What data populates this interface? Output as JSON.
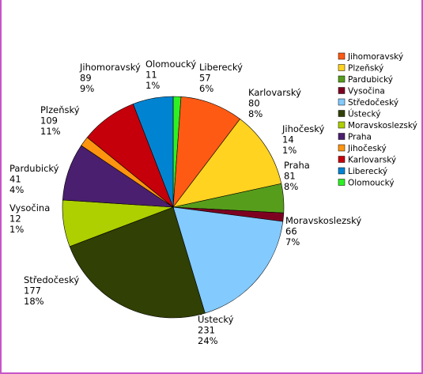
{
  "chart_data": {
    "type": "pie",
    "title": "",
    "categories": [
      "Jihomoravský",
      "Plzeňský",
      "Pardubický",
      "Vysočina",
      "Středočeský",
      "Ústecký",
      "Moravskoslezský",
      "Praha",
      "Jihočeský",
      "Karlovarský",
      "Liberecký",
      "Olomoucký"
    ],
    "values": [
      89,
      109,
      41,
      12,
      177,
      231,
      66,
      81,
      14,
      80,
      57,
      11
    ],
    "percent_labels": [
      "9%",
      "11%",
      "4%",
      "1%",
      "18%",
      "24%",
      "7%",
      "8%",
      "1%",
      "8%",
      "6%",
      "1%"
    ],
    "colors": [
      "#ff5a14",
      "#ffd320",
      "#579d1c",
      "#7e0021",
      "#83caff",
      "#314004",
      "#aecf00",
      "#4b1f6f",
      "#ff950e",
      "#c5000b",
      "#0084d1",
      "#2ef024"
    ],
    "legend_position": "right",
    "legend": [
      "Jihomoravský",
      "Plzeňský",
      "Pardubický",
      "Vysočina",
      "Středočeský",
      "Ústecký",
      "Moravskoslezský",
      "Praha",
      "Jihočeský",
      "Karlovarský",
      "Liberecký",
      "Olomoucký"
    ],
    "start_category": "Olomoucký",
    "direction": "clockwise"
  }
}
